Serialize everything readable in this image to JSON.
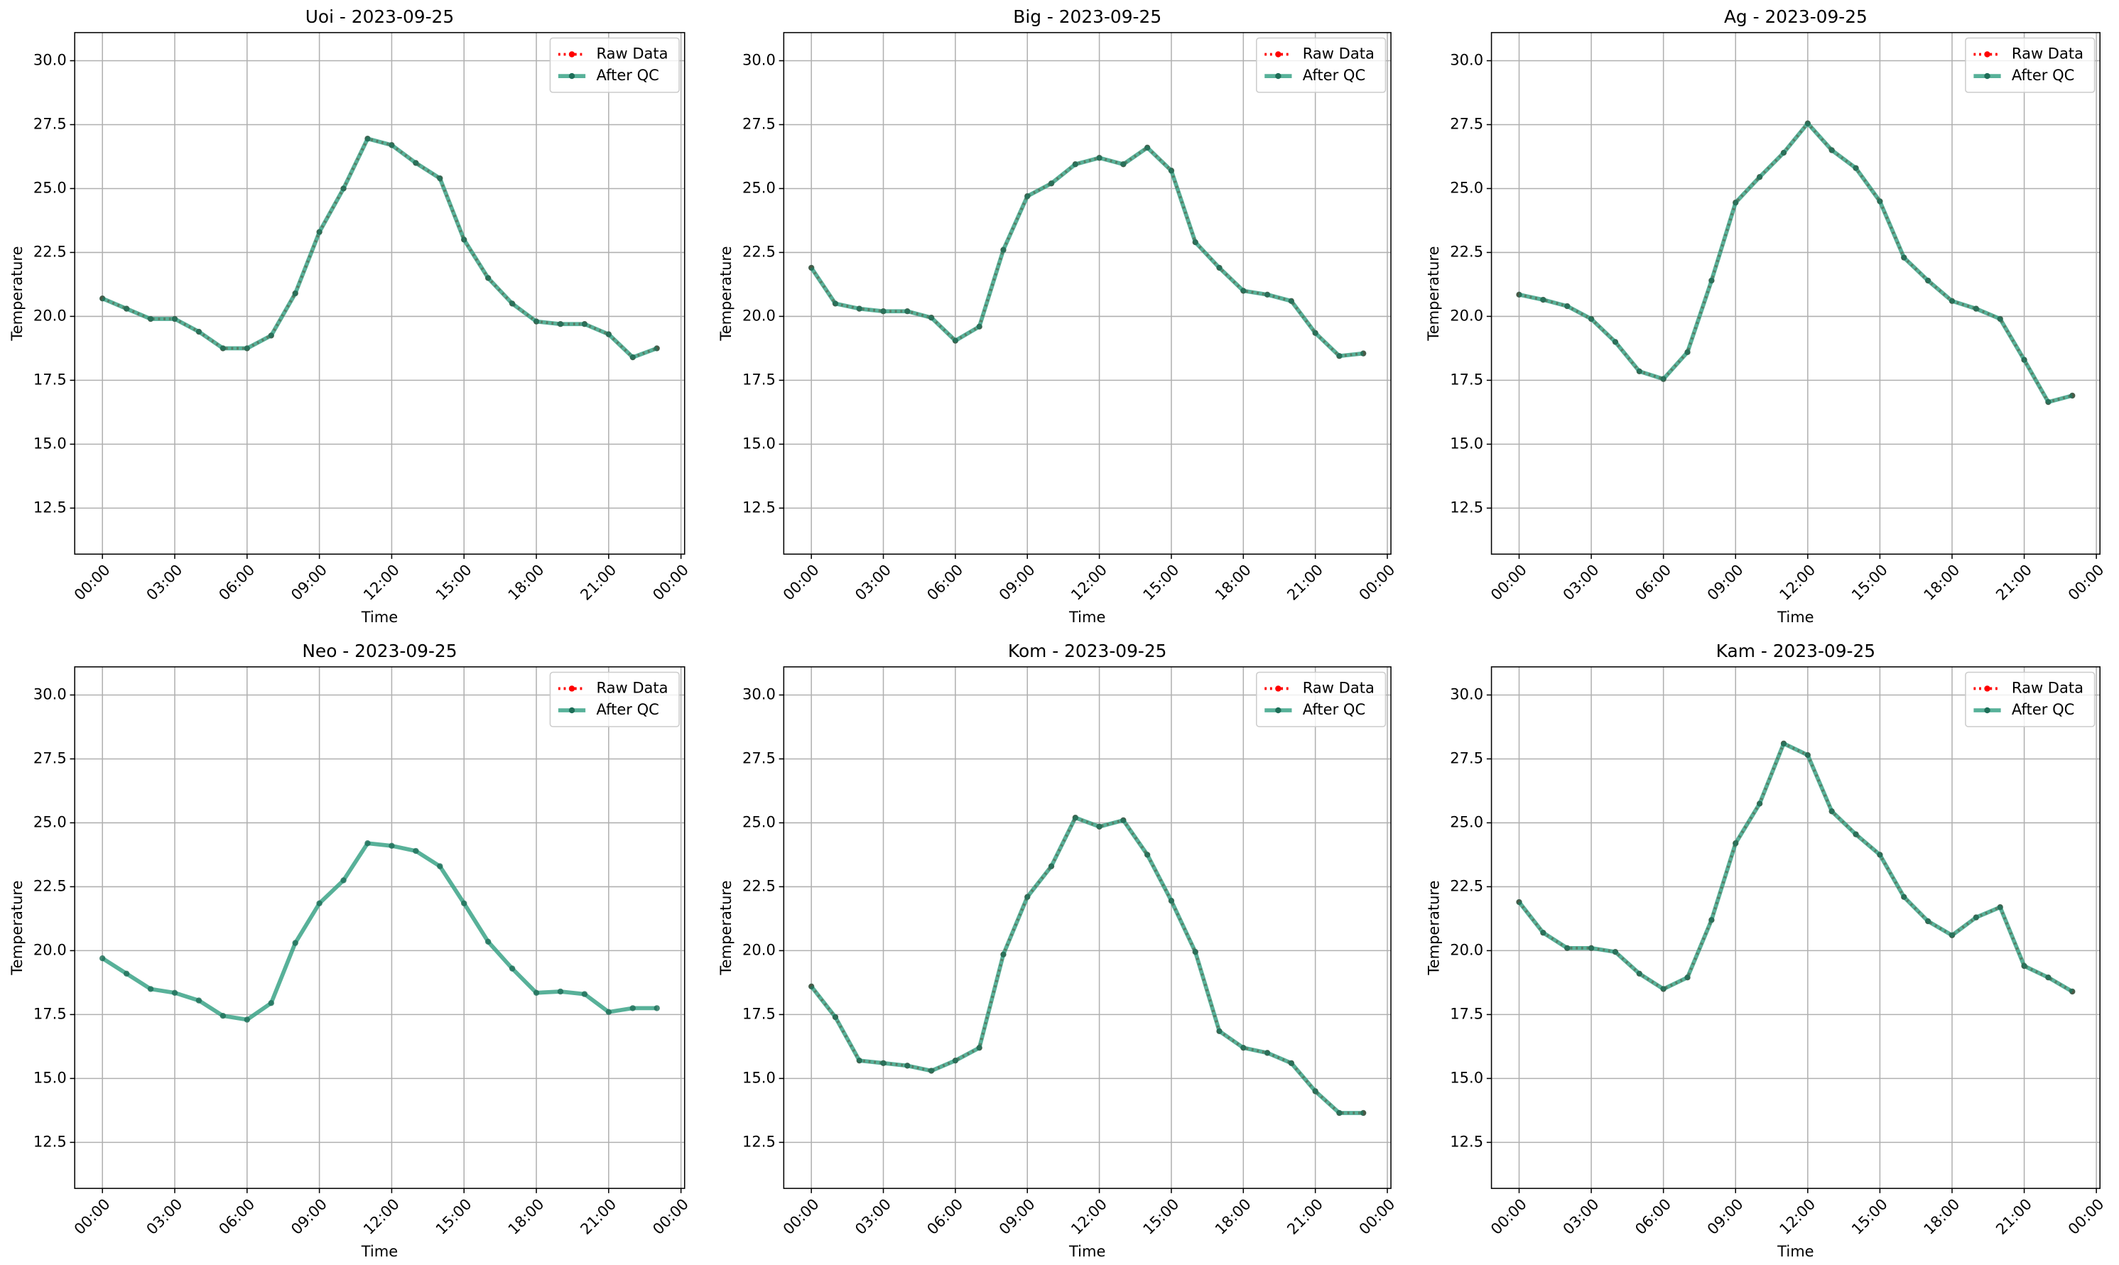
{
  "chart_data": [
    {
      "type": "line",
      "title": "Uoi - 2023-09-25",
      "xlabel": "Time",
      "ylabel": "Temperature",
      "grid": true,
      "legend": "upper right",
      "x": [
        0,
        1,
        2,
        3,
        4,
        5,
        6,
        7,
        8,
        9,
        10,
        11,
        12,
        13,
        14,
        15,
        16,
        17,
        18,
        19,
        20,
        21,
        22,
        23
      ],
      "xlim": [
        -1.15,
        24.15
      ],
      "xticks": [
        {
          "value": 0,
          "label": "00:00"
        },
        {
          "value": 3,
          "label": "03:00"
        },
        {
          "value": 6,
          "label": "06:00"
        },
        {
          "value": 9,
          "label": "09:00"
        },
        {
          "value": 12,
          "label": "12:00"
        },
        {
          "value": 15,
          "label": "15:00"
        },
        {
          "value": 18,
          "label": "18:00"
        },
        {
          "value": 21,
          "label": "21:00"
        },
        {
          "value": 24,
          "label": "00:00"
        }
      ],
      "ylim": [
        10.7,
        31.1
      ],
      "yticks": [
        12.5,
        {
          "value": 15,
          "label": "15.0"
        },
        17.5,
        {
          "value": 20,
          "label": "20.0"
        },
        22.5,
        {
          "value": 25,
          "label": "25.0"
        },
        27.5,
        {
          "value": 30,
          "label": "30.0"
        }
      ],
      "series": [
        {
          "name": "Raw Data",
          "color": "#ff0000",
          "values": [
            20.7,
            20.3,
            19.9,
            19.9,
            19.4,
            18.75,
            18.75,
            19.25,
            20.9,
            23.3,
            25.0,
            26.95,
            26.7,
            26.0,
            25.4,
            23.0,
            21.5,
            20.5,
            19.8,
            19.7,
            19.7,
            19.3,
            18.4,
            18.75
          ]
        },
        {
          "name": "After QC",
          "color": "#2e9e80",
          "values": [
            20.7,
            20.3,
            19.9,
            19.9,
            19.4,
            18.75,
            18.75,
            19.25,
            20.9,
            23.3,
            25.0,
            26.95,
            26.7,
            26.0,
            25.4,
            23.0,
            21.5,
            20.5,
            19.8,
            19.7,
            19.7,
            19.3,
            18.4,
            18.75
          ]
        }
      ]
    },
    {
      "type": "line",
      "title": "Big - 2023-09-25",
      "xlabel": "Time",
      "ylabel": "Temperature",
      "grid": true,
      "legend": "upper right",
      "x": [
        0,
        1,
        2,
        3,
        4,
        5,
        6,
        7,
        8,
        9,
        10,
        11,
        12,
        13,
        14,
        15,
        16,
        17,
        18,
        19,
        20,
        21,
        22,
        23
      ],
      "xlim": [
        -1.15,
        24.15
      ],
      "xticks": [
        {
          "value": 0,
          "label": "00:00"
        },
        {
          "value": 3,
          "label": "03:00"
        },
        {
          "value": 6,
          "label": "06:00"
        },
        {
          "value": 9,
          "label": "09:00"
        },
        {
          "value": 12,
          "label": "12:00"
        },
        {
          "value": 15,
          "label": "15:00"
        },
        {
          "value": 18,
          "label": "18:00"
        },
        {
          "value": 21,
          "label": "21:00"
        },
        {
          "value": 24,
          "label": "00:00"
        }
      ],
      "ylim": [
        10.7,
        31.1
      ],
      "yticks": [
        12.5,
        {
          "value": 15,
          "label": "15.0"
        },
        17.5,
        {
          "value": 20,
          "label": "20.0"
        },
        22.5,
        {
          "value": 25,
          "label": "25.0"
        },
        27.5,
        {
          "value": 30,
          "label": "30.0"
        }
      ],
      "series": [
        {
          "name": "Raw Data",
          "color": "#ff0000",
          "values": [
            21.9,
            20.5,
            20.3,
            20.2,
            20.2,
            19.95,
            19.05,
            19.6,
            22.6,
            24.7,
            25.2,
            25.95,
            26.2,
            25.95,
            26.6,
            25.7,
            22.9,
            21.9,
            21.0,
            20.85,
            20.6,
            19.35,
            18.45,
            18.55
          ]
        },
        {
          "name": "After QC",
          "color": "#2e9e80",
          "values": [
            21.9,
            20.5,
            20.3,
            20.2,
            20.2,
            19.95,
            19.05,
            19.6,
            22.6,
            24.7,
            25.2,
            25.95,
            26.2,
            25.95,
            26.6,
            25.7,
            22.9,
            21.9,
            21.0,
            20.85,
            20.6,
            19.35,
            18.45,
            18.55
          ]
        }
      ]
    },
    {
      "type": "line",
      "title": "Ag - 2023-09-25",
      "xlabel": "Time",
      "ylabel": "Temperature",
      "grid": true,
      "legend": "upper right",
      "x": [
        0,
        1,
        2,
        3,
        4,
        5,
        6,
        7,
        8,
        9,
        10,
        11,
        12,
        13,
        14,
        15,
        16,
        17,
        18,
        19,
        20,
        21,
        22,
        23
      ],
      "xlim": [
        -1.15,
        24.15
      ],
      "xticks": [
        {
          "value": 0,
          "label": "00:00"
        },
        {
          "value": 3,
          "label": "03:00"
        },
        {
          "value": 6,
          "label": "06:00"
        },
        {
          "value": 9,
          "label": "09:00"
        },
        {
          "value": 12,
          "label": "12:00"
        },
        {
          "value": 15,
          "label": "15:00"
        },
        {
          "value": 18,
          "label": "18:00"
        },
        {
          "value": 21,
          "label": "21:00"
        },
        {
          "value": 24,
          "label": "00:00"
        }
      ],
      "ylim": [
        10.7,
        31.1
      ],
      "yticks": [
        12.5,
        {
          "value": 15,
          "label": "15.0"
        },
        17.5,
        {
          "value": 20,
          "label": "20.0"
        },
        22.5,
        {
          "value": 25,
          "label": "25.0"
        },
        27.5,
        {
          "value": 30,
          "label": "30.0"
        }
      ],
      "series": [
        {
          "name": "Raw Data",
          "color": "#ff0000",
          "values": [
            20.85,
            20.65,
            20.4,
            19.9,
            19.0,
            17.85,
            17.55,
            18.6,
            21.4,
            24.45,
            25.45,
            26.4,
            27.55,
            26.5,
            25.8,
            24.5,
            22.3,
            21.4,
            20.6,
            20.3,
            19.9,
            18.3,
            16.65,
            16.9
          ]
        },
        {
          "name": "After QC",
          "color": "#2e9e80",
          "values": [
            20.85,
            20.65,
            20.4,
            19.9,
            19.0,
            17.85,
            17.55,
            18.6,
            21.4,
            24.45,
            25.45,
            26.4,
            27.55,
            26.5,
            25.8,
            24.5,
            22.3,
            21.4,
            20.6,
            20.3,
            19.9,
            18.3,
            16.65,
            16.9
          ]
        }
      ]
    },
    {
      "type": "line",
      "title": "Neo - 2023-09-25",
      "xlabel": "Time",
      "ylabel": "Temperature",
      "grid": true,
      "legend": "upper right",
      "x": [
        0,
        1,
        2,
        3,
        4,
        5,
        6,
        7,
        8,
        9,
        10,
        11,
        12,
        13,
        14,
        15,
        16,
        17,
        18,
        19,
        20,
        21,
        22,
        23
      ],
      "xlim": [
        -1.15,
        24.15
      ],
      "xticks": [
        {
          "value": 0,
          "label": "00:00"
        },
        {
          "value": 3,
          "label": "03:00"
        },
        {
          "value": 6,
          "label": "06:00"
        },
        {
          "value": 9,
          "label": "09:00"
        },
        {
          "value": 12,
          "label": "12:00"
        },
        {
          "value": 15,
          "label": "15:00"
        },
        {
          "value": 18,
          "label": "18:00"
        },
        {
          "value": 21,
          "label": "21:00"
        },
        {
          "value": 24,
          "label": "00:00"
        }
      ],
      "ylim": [
        10.7,
        31.1
      ],
      "yticks": [
        12.5,
        {
          "value": 15,
          "label": "15.0"
        },
        17.5,
        {
          "value": 20,
          "label": "20.0"
        },
        22.5,
        {
          "value": 25,
          "label": "25.0"
        },
        27.5,
        {
          "value": 30,
          "label": "30.0"
        }
      ],
      "series": [
        {
          "name": "Raw Data",
          "color": "#ff0000",
          "values": [
            null,
            null,
            null,
            null,
            null,
            null,
            null,
            null,
            null,
            null,
            null,
            null,
            null,
            null,
            null,
            null,
            null,
            null,
            null,
            null,
            null,
            null,
            null,
            null
          ]
        },
        {
          "name": "After QC",
          "color": "#2e9e80",
          "values": [
            19.7,
            19.1,
            18.5,
            18.35,
            18.05,
            17.45,
            17.3,
            17.95,
            20.3,
            21.85,
            22.75,
            24.2,
            24.1,
            23.9,
            23.3,
            21.85,
            20.35,
            19.3,
            18.35,
            18.4,
            18.3,
            17.6,
            17.75,
            17.75
          ]
        }
      ]
    },
    {
      "type": "line",
      "title": "Kom - 2023-09-25",
      "xlabel": "Time",
      "ylabel": "Temperature",
      "grid": true,
      "legend": "upper right",
      "x": [
        0,
        1,
        2,
        3,
        4,
        5,
        6,
        7,
        8,
        9,
        10,
        11,
        12,
        13,
        14,
        15,
        16,
        17,
        18,
        19,
        20,
        21,
        22,
        23
      ],
      "xlim": [
        -1.15,
        24.15
      ],
      "xticks": [
        {
          "value": 0,
          "label": "00:00"
        },
        {
          "value": 3,
          "label": "03:00"
        },
        {
          "value": 6,
          "label": "06:00"
        },
        {
          "value": 9,
          "label": "09:00"
        },
        {
          "value": 12,
          "label": "12:00"
        },
        {
          "value": 15,
          "label": "15:00"
        },
        {
          "value": 18,
          "label": "18:00"
        },
        {
          "value": 21,
          "label": "21:00"
        },
        {
          "value": 24,
          "label": "00:00"
        }
      ],
      "ylim": [
        10.7,
        31.1
      ],
      "yticks": [
        12.5,
        {
          "value": 15,
          "label": "15.0"
        },
        17.5,
        {
          "value": 20,
          "label": "20.0"
        },
        22.5,
        {
          "value": 25,
          "label": "25.0"
        },
        27.5,
        {
          "value": 30,
          "label": "30.0"
        }
      ],
      "series": [
        {
          "name": "Raw Data",
          "color": "#ff0000",
          "values": [
            18.6,
            17.4,
            15.7,
            15.6,
            15.5,
            15.3,
            15.7,
            16.2,
            19.85,
            22.1,
            23.3,
            25.2,
            24.85,
            25.1,
            23.75,
            21.95,
            19.95,
            16.85,
            16.2,
            16.0,
            15.6,
            14.5,
            13.65,
            13.65
          ]
        },
        {
          "name": "After QC",
          "color": "#2e9e80",
          "values": [
            18.6,
            17.4,
            15.7,
            15.6,
            15.5,
            15.3,
            15.7,
            16.2,
            19.85,
            22.1,
            23.3,
            25.2,
            24.85,
            25.1,
            23.75,
            21.95,
            19.95,
            16.85,
            16.2,
            16.0,
            15.6,
            14.5,
            13.65,
            13.65
          ]
        }
      ]
    },
    {
      "type": "line",
      "title": "Kam - 2023-09-25",
      "xlabel": "Time",
      "ylabel": "Temperature",
      "grid": true,
      "legend": "upper right",
      "x": [
        0,
        1,
        2,
        3,
        4,
        5,
        6,
        7,
        8,
        9,
        10,
        11,
        12,
        13,
        14,
        15,
        16,
        17,
        18,
        19,
        20,
        21,
        22,
        23
      ],
      "xlim": [
        -1.15,
        24.15
      ],
      "xticks": [
        {
          "value": 0,
          "label": "00:00"
        },
        {
          "value": 3,
          "label": "03:00"
        },
        {
          "value": 6,
          "label": "06:00"
        },
        {
          "value": 9,
          "label": "09:00"
        },
        {
          "value": 12,
          "label": "12:00"
        },
        {
          "value": 15,
          "label": "15:00"
        },
        {
          "value": 18,
          "label": "18:00"
        },
        {
          "value": 21,
          "label": "21:00"
        },
        {
          "value": 24,
          "label": "00:00"
        }
      ],
      "ylim": [
        10.7,
        31.1
      ],
      "yticks": [
        12.5,
        {
          "value": 15,
          "label": "15.0"
        },
        17.5,
        {
          "value": 20,
          "label": "20.0"
        },
        22.5,
        {
          "value": 25,
          "label": "25.0"
        },
        27.5,
        {
          "value": 30,
          "label": "30.0"
        }
      ],
      "series": [
        {
          "name": "Raw Data",
          "color": "#ff0000",
          "values": [
            21.9,
            20.7,
            20.1,
            20.1,
            19.95,
            19.1,
            18.5,
            18.95,
            21.2,
            24.2,
            25.75,
            28.1,
            27.65,
            25.45,
            24.55,
            23.75,
            22.1,
            21.15,
            20.6,
            21.3,
            21.7,
            19.4,
            18.95,
            18.4
          ]
        },
        {
          "name": "After QC",
          "color": "#2e9e80",
          "values": [
            21.9,
            20.7,
            20.1,
            20.1,
            19.95,
            19.1,
            18.5,
            18.95,
            21.2,
            24.2,
            25.75,
            28.1,
            27.65,
            25.45,
            24.55,
            23.75,
            22.1,
            21.15,
            20.6,
            21.3,
            21.7,
            19.4,
            18.95,
            18.4
          ]
        }
      ]
    }
  ]
}
